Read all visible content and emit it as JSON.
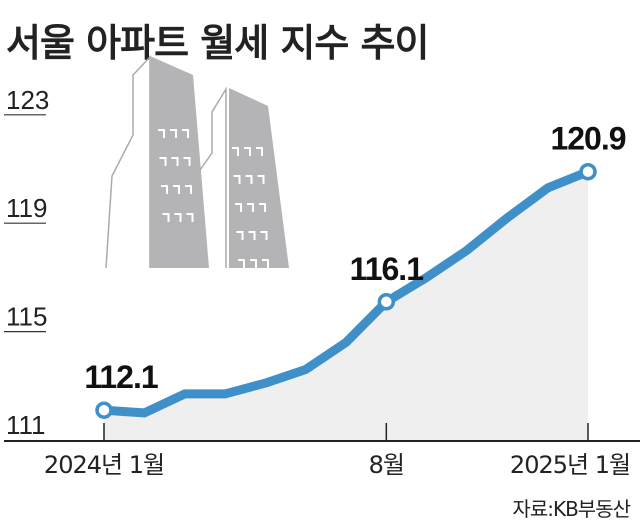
{
  "chart_data": {
    "type": "area",
    "title": "서울 아파트 월세 지수 추이",
    "source": "자료:KB부동산",
    "xlabel": "",
    "ylabel": "",
    "ylim": [
      111,
      123
    ],
    "yticks": [
      123,
      119,
      115,
      111
    ],
    "x": [
      "2024-01",
      "2024-02",
      "2024-03",
      "2024-04",
      "2024-05",
      "2024-06",
      "2024-07",
      "2024-08",
      "2024-09",
      "2024-10",
      "2024-11",
      "2024-12",
      "2025-01"
    ],
    "xtick_labels": [
      {
        "index": 0,
        "label": "2024년 1월"
      },
      {
        "index": 7,
        "label": "8월"
      },
      {
        "index": 12,
        "label": "2025년 1월"
      }
    ],
    "series": [
      {
        "name": "서울 아파트 월세 지수",
        "values": [
          112.1,
          112.0,
          112.7,
          112.7,
          113.1,
          113.6,
          114.6,
          116.1,
          117.0,
          118.0,
          119.2,
          120.3,
          120.9
        ]
      }
    ],
    "data_labels": [
      {
        "index": 0,
        "label": "112.1"
      },
      {
        "index": 7,
        "label": "116.1"
      },
      {
        "index": 12,
        "label": "120.9"
      }
    ],
    "colors": {
      "line": "#3f8fc8",
      "fill": "#efefef",
      "building": "#b4b4b7"
    },
    "grid": false
  }
}
